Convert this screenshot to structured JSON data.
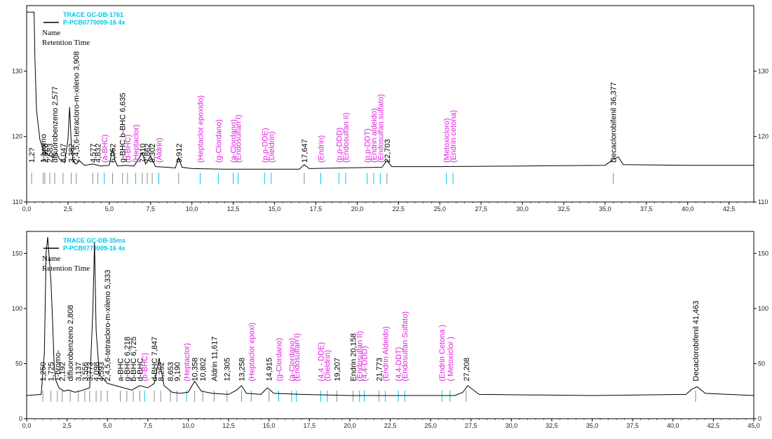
{
  "colors": {
    "trace": "#000000",
    "cyan": "#00c8e6",
    "magenta": "#e020e0",
    "axis": "#000000"
  },
  "chart_data": [
    {
      "type": "line",
      "title": "TRACE GC-DB-1761",
      "subtitle": "P-PCB0770009-16 4x",
      "legend_name": "Name",
      "legend_rt": "Retention Time",
      "xlim": [
        0.0,
        44.0
      ],
      "ylim": [
        110,
        140
      ],
      "x_ticks": [
        "0,0",
        "2,5",
        "5,0",
        "7,5",
        "10,0",
        "12,5",
        "15,0",
        "17,5",
        "20,0",
        "22,5",
        "25,0",
        "27,5",
        "30,0",
        "32,5",
        "35,0",
        "37,5",
        "40,0",
        "42,5"
      ],
      "y_ticks": [
        110,
        120,
        130
      ],
      "x": [
        0.0,
        0.3,
        0.4,
        0.45,
        0.5,
        0.6,
        0.8,
        1.0,
        1.3,
        1.6,
        1.8,
        2.0,
        2.3,
        2.5,
        2.6,
        2.7,
        2.8,
        3.0,
        3.2,
        3.5,
        4.0,
        4.5,
        5.0,
        5.2,
        5.35,
        5.5,
        6.0,
        6.5,
        7.0,
        7.2,
        7.5,
        7.8,
        8.5,
        9.0,
        9.2,
        9.4,
        10.0,
        12.0,
        16.5,
        16.8,
        17.1,
        19.0,
        21.5,
        21.8,
        22.1,
        25.0,
        30.0,
        35.0,
        35.5,
        35.8,
        36.1,
        40.0,
        44.0
      ],
      "y": [
        139,
        139,
        139,
        139,
        132,
        124,
        119.5,
        118,
        117.2,
        116.8,
        117.5,
        116.5,
        116.0,
        119.5,
        124.5,
        119.0,
        116.2,
        115.8,
        116.3,
        115.6,
        115.8,
        115.5,
        115.6,
        118.2,
        116.3,
        115.5,
        115.6,
        115.5,
        117.5,
        115.8,
        117.0,
        115.4,
        115.3,
        115.2,
        116.8,
        115.3,
        115.1,
        115.0,
        115.0,
        115.7,
        115.1,
        115.2,
        115.3,
        116.3,
        115.4,
        115.4,
        115.5,
        115.6,
        116.5,
        116.9,
        115.7,
        115.6,
        115.6
      ],
      "labels": [
        {
          "x": 0.3,
          "text": "1,2?",
          "color": "black"
        },
        {
          "x": 1.0,
          "text": "1-bromo",
          "color": "black"
        },
        {
          "x": 1.1,
          "text": "2,428",
          "color": "black"
        },
        {
          "x": 1.4,
          "text": "2,583",
          "color": "black"
        },
        {
          "x": 1.7,
          "text": "difluorobenzeno 2,577",
          "color": "black"
        },
        {
          "x": 2.2,
          "text": "3,047",
          "color": "black"
        },
        {
          "x": 2.7,
          "text": "3,382",
          "color": "black"
        },
        {
          "x": 3.0,
          "text": "2,4,5,6-tetracloro-m-xileno 3,908",
          "color": "black"
        },
        {
          "x": 4.0,
          "text": "4,577",
          "color": "black"
        },
        {
          "x": 4.3,
          "text": "4,832",
          "color": "black"
        },
        {
          "x": 4.7,
          "text": "(a-BHC)",
          "color": "magenta"
        },
        {
          "x": 5.2,
          "text": "6,052",
          "color": "black"
        },
        {
          "x": 5.8,
          "text": "g-BHC b-BHC 6,635",
          "color": "black"
        },
        {
          "x": 6.1,
          "text": "(d-BHC)",
          "color": "magenta"
        },
        {
          "x": 6.6,
          "text": "(Heptaclor)",
          "color": "magenta"
        },
        {
          "x": 7.0,
          "text": "7,310",
          "color": "black"
        },
        {
          "x": 7.3,
          "text": "7,862",
          "color": "black"
        },
        {
          "x": 7.6,
          "text": "8,302",
          "color": "black"
        },
        {
          "x": 8.0,
          "text": "(Aldrin)",
          "color": "magenta"
        },
        {
          "x": 9.2,
          "text": "9,912",
          "color": "black"
        },
        {
          "x": 10.5,
          "text": "(Heptaclor epoxido)",
          "color": "magenta"
        },
        {
          "x": 11.6,
          "text": "(g-Clordano)",
          "color": "magenta"
        },
        {
          "x": 12.5,
          "text": "(a-Clordano)",
          "color": "magenta"
        },
        {
          "x": 12.8,
          "text": "(Endosulfan I)",
          "color": "magenta"
        },
        {
          "x": 14.4,
          "text": "(p,p-DDE)",
          "color": "magenta"
        },
        {
          "x": 14.8,
          "text": "(Dieldrin)",
          "color": "magenta"
        },
        {
          "x": 16.8,
          "text": "17,647",
          "color": "black"
        },
        {
          "x": 17.8,
          "text": "(Endrin)",
          "color": "magenta"
        },
        {
          "x": 18.9,
          "text": "(p,p-DDD)",
          "color": "magenta"
        },
        {
          "x": 19.3,
          "text": "(Endosulfan II)",
          "color": "magenta"
        },
        {
          "x": 20.6,
          "text": "(p,p-DDT)",
          "color": "magenta"
        },
        {
          "x": 21.0,
          "text": "(Endrin aldeido)",
          "color": "magenta"
        },
        {
          "x": 21.4,
          "text": "(Endosulfan sulfato)",
          "color": "magenta"
        },
        {
          "x": 21.8,
          "text": "22,703",
          "color": "black"
        },
        {
          "x": 25.4,
          "text": "(Metoxicloro)",
          "color": "magenta"
        },
        {
          "x": 25.8,
          "text": "(Endrin cetona)",
          "color": "magenta"
        },
        {
          "x": 35.5,
          "text": "Decaclorobifenil 36,377",
          "color": "black"
        }
      ]
    },
    {
      "type": "line",
      "title": "TRACE GC-DB-35ms",
      "subtitle": "P-PCB0770009-16 4x",
      "legend_name": "Name",
      "legend_rt": "Retention Time",
      "xlim": [
        0.0,
        45.0
      ],
      "ylim": [
        0,
        170
      ],
      "x_ticks": [
        "0,0",
        "2,5",
        "5,0",
        "7,5",
        "10,0",
        "12,5",
        "15,0",
        "17,5",
        "20,0",
        "22,5",
        "25,0",
        "27,5",
        "30,0",
        "32,5",
        "35,0",
        "37,5",
        "40,0",
        "42,5",
        "45,0"
      ],
      "y_ticks": [
        0,
        50,
        100,
        150
      ],
      "x": [
        0.0,
        0.9,
        1.1,
        1.2,
        1.3,
        1.4,
        1.5,
        1.6,
        1.7,
        1.8,
        2.0,
        2.3,
        2.6,
        3.0,
        3.5,
        3.9,
        4.1,
        4.2,
        4.3,
        4.5,
        5.0,
        5.5,
        6.0,
        6.5,
        7.0,
        7.5,
        7.9,
        8.2,
        8.5,
        9.0,
        9.5,
        10.0,
        10.4,
        10.8,
        11.5,
        12.5,
        13.0,
        13.3,
        13.6,
        14.5,
        14.9,
        15.3,
        17.0,
        20.0,
        22.0,
        26.5,
        27.0,
        27.3,
        28.0,
        35.0,
        40.8,
        41.2,
        41.5,
        42.0,
        45.0
      ],
      "y": [
        21,
        22,
        60,
        150,
        165,
        145,
        125,
        90,
        50,
        35,
        28,
        25,
        26,
        24,
        26,
        28,
        100,
        160,
        80,
        40,
        32,
        30,
        28,
        26,
        30,
        28,
        32,
        55,
        30,
        24,
        23,
        24,
        34,
        25,
        23,
        22,
        26,
        30,
        23,
        22,
        28,
        23,
        22,
        21,
        21,
        21,
        24,
        30,
        22,
        21,
        22,
        27,
        29,
        23,
        21
      ],
      "labels": [
        {
          "x": 1.0,
          "text": "1,250",
          "color": "black"
        },
        {
          "x": 1.5,
          "text": "1,725",
          "color": "black"
        },
        {
          "x": 1.9,
          "text": "1-bromo-",
          "color": "black"
        },
        {
          "x": 2.2,
          "text": "2,192",
          "color": "black"
        },
        {
          "x": 2.7,
          "text": "difluorobenzeno 2,808",
          "color": "black"
        },
        {
          "x": 3.2,
          "text": "3,137",
          "color": "black"
        },
        {
          "x": 3.6,
          "text": "3,556",
          "color": "black"
        },
        {
          "x": 3.9,
          "text": "3,773",
          "color": "black"
        },
        {
          "x": 4.3,
          "text": "4,098",
          "color": "black"
        },
        {
          "x": 4.6,
          "text": "4,593",
          "color": "black"
        },
        {
          "x": 5.0,
          "text": "2,4,5,6-tetracloro-m-xileno 5,333",
          "color": "black"
        },
        {
          "x": 5.8,
          "text": "a-BHC",
          "color": "black"
        },
        {
          "x": 6.2,
          "text": "g-BHC 6,218",
          "color": "black"
        },
        {
          "x": 6.6,
          "text": "b-BHC 6,725",
          "color": "black"
        },
        {
          "x": 7.0,
          "text": "d-BHC",
          "color": "black"
        },
        {
          "x": 7.3,
          "text": "(b-BHC)",
          "color": "magenta"
        },
        {
          "x": 7.9,
          "text": "d-BHC 7,847",
          "color": "black"
        },
        {
          "x": 8.3,
          "text": "8,252",
          "color": "black"
        },
        {
          "x": 8.9,
          "text": "8,653",
          "color": "black"
        },
        {
          "x": 9.3,
          "text": "9,190",
          "color": "black"
        },
        {
          "x": 9.9,
          "text": "(Heptaclor)",
          "color": "magenta"
        },
        {
          "x": 10.4,
          "text": "10,358",
          "color": "black"
        },
        {
          "x": 10.9,
          "text": "10,802",
          "color": "black"
        },
        {
          "x": 11.6,
          "text": "Aldrin 11,617",
          "color": "black"
        },
        {
          "x": 12.4,
          "text": "12,305",
          "color": "black"
        },
        {
          "x": 13.3,
          "text": "13,258",
          "color": "black"
        },
        {
          "x": 13.9,
          "text": "(Heptaclor epoxi)",
          "color": "magenta"
        },
        {
          "x": 15.0,
          "text": "14,915",
          "color": "black"
        },
        {
          "x": 15.6,
          "text": "(g-Clordano)",
          "color": "magenta"
        },
        {
          "x": 16.4,
          "text": "(a-Clordano)",
          "color": "magenta"
        },
        {
          "x": 16.7,
          "text": "(Endosulfan I)",
          "color": "magenta"
        },
        {
          "x": 18.2,
          "text": "(4,4 - DDE)",
          "color": "magenta"
        },
        {
          "x": 18.6,
          "text": "(Dieldrin)",
          "color": "magenta"
        },
        {
          "x": 19.2,
          "text": "19,207",
          "color": "black"
        },
        {
          "x": 20.2,
          "text": "Endrin 20,158",
          "color": "black"
        },
        {
          "x": 20.6,
          "text": "(Endosulfan II)",
          "color": "magenta"
        },
        {
          "x": 20.9,
          "text": "(4,4-DDD)",
          "color": "magenta"
        },
        {
          "x": 21.8,
          "text": "21,773",
          "color": "black"
        },
        {
          "x": 22.2,
          "text": "(Endrin Aldeido)",
          "color": "magenta"
        },
        {
          "x": 23.0,
          "text": "(4,4-DDT)",
          "color": "magenta"
        },
        {
          "x": 23.4,
          "text": "(Endosulfan Sulfato)",
          "color": "magenta"
        },
        {
          "x": 25.7,
          "text": "(Endrin Cetona )",
          "color": "magenta"
        },
        {
          "x": 26.2,
          "text": "( Metoxiclor )",
          "color": "magenta"
        },
        {
          "x": 27.2,
          "text": "27,208",
          "color": "black"
        },
        {
          "x": 41.4,
          "text": "Decaclorobifenil 41,463",
          "color": "black"
        }
      ]
    }
  ]
}
